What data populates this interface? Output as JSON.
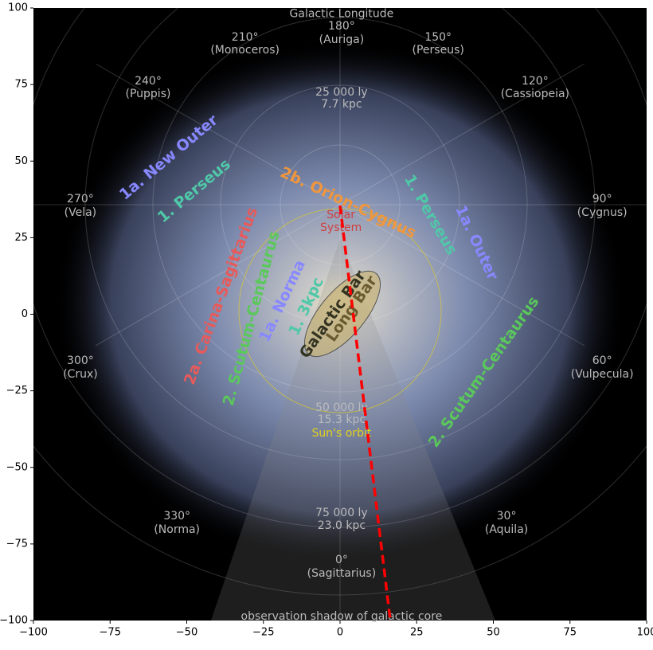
{
  "chart_data": {
    "type": "line",
    "x": [
      0,
      16.4
    ],
    "series": [
      {
        "color": "#ff0000",
        "values": [
          35.5,
          -100
        ]
      }
    ],
    "xlim": [
      -100,
      100
    ],
    "ylim": [
      -100,
      100
    ],
    "xticks": [
      {
        "value": -100,
        "label": "−100"
      },
      {
        "value": -75,
        "label": "−75"
      },
      {
        "value": -50,
        "label": "−50"
      },
      {
        "value": -25,
        "label": "−25"
      },
      0,
      25,
      50,
      75,
      100
    ],
    "yticks": [
      {
        "value": -100,
        "label": "−100"
      },
      {
        "value": -75,
        "label": "−75"
      },
      {
        "value": -50,
        "label": "−50"
      },
      {
        "value": -25,
        "label": "−25"
      },
      0,
      25,
      50,
      75,
      100
    ],
    "annotations": [
      {
        "text": "Galactic Longitude",
        "x": 0.5,
        "y": 98,
        "color": "#bbbbbb"
      },
      {
        "text": "180°",
        "x": 0.5,
        "y": 94,
        "color": "#bbbbbb"
      },
      {
        "text": "(Auriga)",
        "x": 0.5,
        "y": 89.6,
        "color": "#bbbbbb"
      },
      {
        "text": "210°",
        "x": -31,
        "y": 90.4,
        "color": "#bbbbbb"
      },
      {
        "text": "(Monoceros)",
        "x": -31,
        "y": 86.2,
        "color": "#bbbbbb"
      },
      {
        "text": "150°",
        "x": 32,
        "y": 90.4,
        "color": "#bbbbbb"
      },
      {
        "text": "(Perseus)",
        "x": 32,
        "y": 86.2,
        "color": "#bbbbbb"
      },
      {
        "text": "240°",
        "x": -62.6,
        "y": 76.1,
        "color": "#bbbbbb"
      },
      {
        "text": "(Puppis)",
        "x": -62.6,
        "y": 71.9,
        "color": "#bbbbbb"
      },
      {
        "text": "120°",
        "x": 63.6,
        "y": 76.1,
        "color": "#bbbbbb"
      },
      {
        "text": "(Cassiopeia)",
        "x": 63.6,
        "y": 71.9,
        "color": "#bbbbbb"
      },
      {
        "text": "270°",
        "x": -84.7,
        "y": 37.6,
        "color": "#bbbbbb"
      },
      {
        "text": "(Vela)",
        "x": -84.7,
        "y": 33.2,
        "color": "#bbbbbb"
      },
      {
        "text": "90°",
        "x": 85.5,
        "y": 37.6,
        "color": "#bbbbbb"
      },
      {
        "text": "(Cygnus)",
        "x": 85.5,
        "y": 33.2,
        "color": "#bbbbbb"
      },
      {
        "text": "300°",
        "x": -84.7,
        "y": -15.2,
        "color": "#bbbbbb"
      },
      {
        "text": "(Crux)",
        "x": -84.7,
        "y": -19.6,
        "color": "#bbbbbb"
      },
      {
        "text": "60°",
        "x": 85.5,
        "y": -15.2,
        "color": "#bbbbbb"
      },
      {
        "text": "(Vulpecula)",
        "x": 85.5,
        "y": -19.6,
        "color": "#bbbbbb"
      },
      {
        "text": "330°",
        "x": -53.2,
        "y": -65.9,
        "color": "#bbbbbb"
      },
      {
        "text": "(Norma)",
        "x": -53.2,
        "y": -70.4,
        "color": "#bbbbbb"
      },
      {
        "text": "30°",
        "x": 54.3,
        "y": -65.9,
        "color": "#bbbbbb"
      },
      {
        "text": "(Aquila)",
        "x": 54.3,
        "y": -70.4,
        "color": "#bbbbbb"
      },
      {
        "text": "0°",
        "x": 0.5,
        "y": -80.2,
        "color": "#bbbbbb"
      },
      {
        "text": "(Sagittarius)",
        "x": 0.5,
        "y": -84.6,
        "color": "#bbbbbb"
      },
      {
        "text": "25 000 ly",
        "x": 0.5,
        "y": 72.4,
        "color": "#bbbbbb"
      },
      {
        "text": "7.7 kpc",
        "x": 0.5,
        "y": 68.5,
        "color": "#bbbbbb"
      },
      {
        "text": "50 000 ly",
        "x": 0.5,
        "y": -30.6,
        "color": "#bbbbbb"
      },
      {
        "text": "15.3 kpc",
        "x": 0.5,
        "y": -34.5,
        "color": "#bbbbbb"
      },
      {
        "text": "75 000 ly",
        "x": 0.5,
        "y": -64.9,
        "color": "#bbbbbb"
      },
      {
        "text": "23.0 kpc",
        "x": 0.5,
        "y": -69,
        "color": "#bbbbbb"
      },
      {
        "text": "Sun's orbit",
        "x": 0.5,
        "y": -38.9,
        "color": "#e0d020"
      },
      {
        "text": "Solar",
        "x": 0.3,
        "y": 32.4,
        "color": "#d04040"
      },
      {
        "text": "System",
        "x": 0.3,
        "y": 28.2,
        "color": "#d04040"
      },
      {
        "text": "observation shadow of galactic core",
        "x": 0.5,
        "y": -98.7,
        "color": "#bbbbbb"
      },
      {
        "text": "1a. New Outer",
        "x": -55.8,
        "y": 51.1,
        "color": "#8888ff"
      },
      {
        "text": "1. Perseus",
        "x": -47.5,
        "y": 40.2,
        "color": "#50c8a8"
      },
      {
        "text": "2b. Orion-Cygnus",
        "x": 2.6,
        "y": 36.3,
        "color": "#f0963c"
      },
      {
        "text": "1. Perseus",
        "x": 29.4,
        "y": 32.4,
        "color": "#50c8a8"
      },
      {
        "text": "1a. Outer",
        "x": 44.4,
        "y": 23.3,
        "color": "#8888ff"
      },
      {
        "text": "2a. Carina-Sagittarius",
        "x": -38.7,
        "y": 5.9,
        "color": "#e85a5a"
      },
      {
        "text": "2. Scutum-Centaurus",
        "x": -28.8,
        "y": -1.4,
        "color": "#5ac85a"
      },
      {
        "text": "1a. Norma",
        "x": -18.7,
        "y": 4.3,
        "color": "#8888ff"
      },
      {
        "text": "1. 3kpc",
        "x": -10.9,
        "y": 2.5,
        "color": "#50c8a8"
      },
      {
        "text": "Galactic Bar",
        "x": -2.3,
        "y": -0.1,
        "color": "#333322"
      },
      {
        "text": "Long Bar",
        "x": 3.9,
        "y": 1.7,
        "color": "#6a5a30"
      },
      {
        "text": "2. Scutum-Centaurus",
        "x": 47,
        "y": -18.9,
        "color": "#5ac85a"
      }
    ]
  }
}
